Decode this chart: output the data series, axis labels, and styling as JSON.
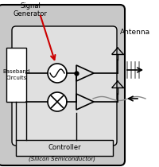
{
  "chip_bg": "#c8c8c8",
  "inner_bg": "#e0e0e0",
  "controller_bg": "#d8d8d8",
  "white": "#ffffff",
  "black": "#000000",
  "red": "#cc0000",
  "gray_wave": "#888888",
  "title_signal": "Signal\nGenerator",
  "title_baseband": "Baseband\nCircuits",
  "title_antenna": "Antenna",
  "title_controller": "Controller",
  "title_silicon": "(Silicon Semiconductor)",
  "figsize": [
    2.0,
    2.1
  ],
  "dpi": 100
}
